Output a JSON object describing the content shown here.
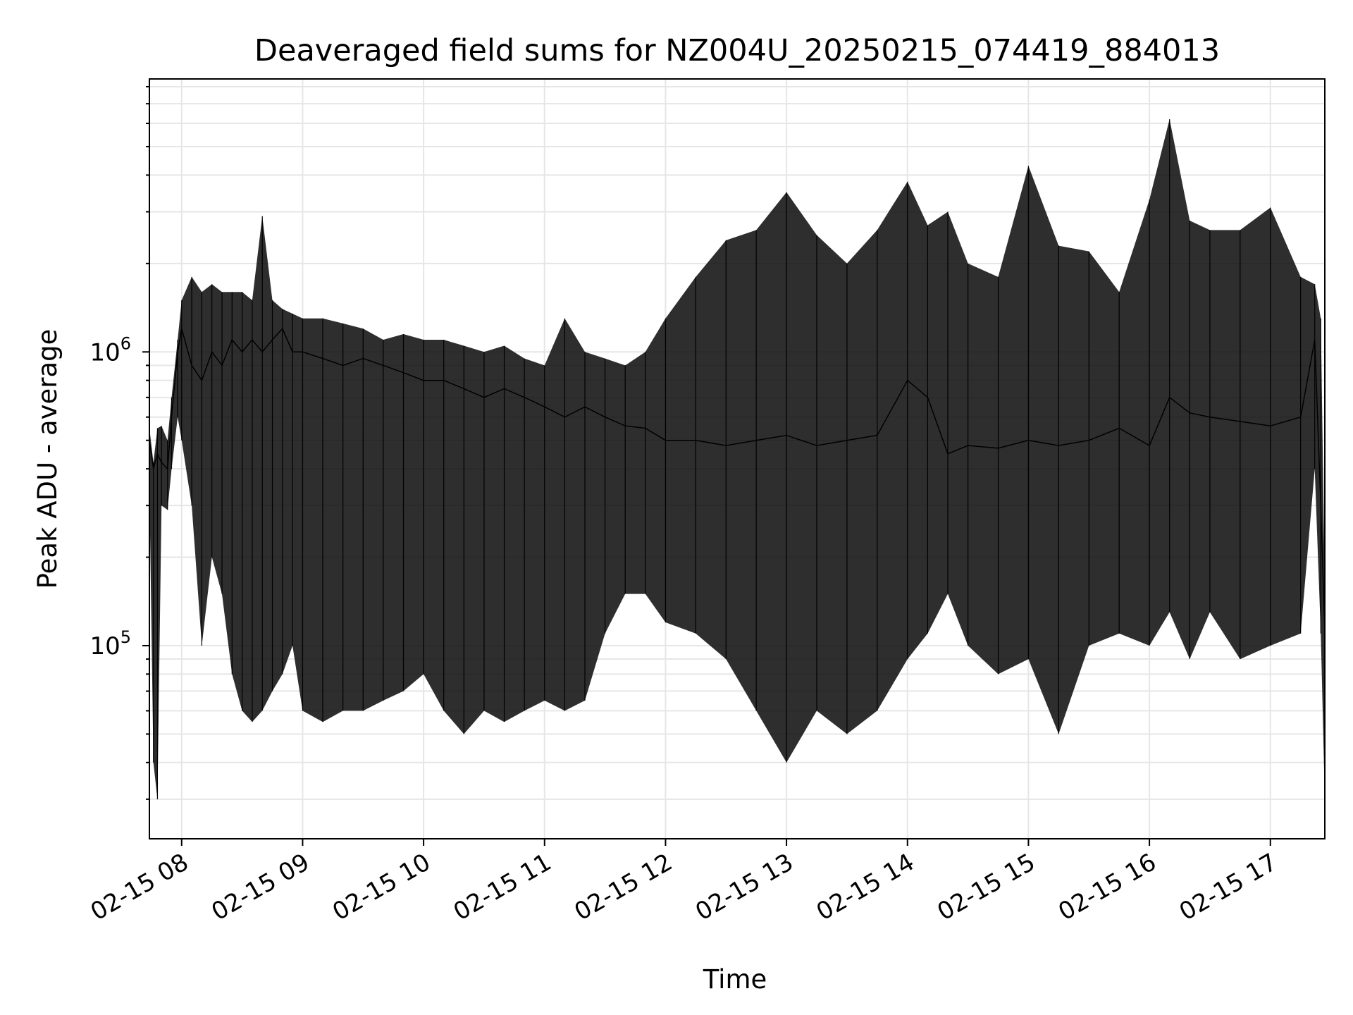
{
  "chart_data": {
    "type": "line",
    "title": "Deaveraged field sums for NZ004U_20250215_074419_884013",
    "xlabel": "Time",
    "ylabel": "Peak ADU - average",
    "yscale": "log",
    "ylim": [
      22000,
      8500000
    ],
    "xlim": [
      "2025-02-15 07:44",
      "2025-02-15 17:27"
    ],
    "grid": true,
    "line_color": "#000000",
    "x_ticks": [
      {
        "label": "02-15 08",
        "value": "2025-02-15 08:00"
      },
      {
        "label": "02-15 09",
        "value": "2025-02-15 09:00"
      },
      {
        "label": "02-15 10",
        "value": "2025-02-15 10:00"
      },
      {
        "label": "02-15 11",
        "value": "2025-02-15 11:00"
      },
      {
        "label": "02-15 12",
        "value": "2025-02-15 12:00"
      },
      {
        "label": "02-15 13",
        "value": "2025-02-15 13:00"
      },
      {
        "label": "02-15 14",
        "value": "2025-02-15 14:00"
      },
      {
        "label": "02-15 15",
        "value": "2025-02-15 15:00"
      },
      {
        "label": "02-15 16",
        "value": "2025-02-15 16:00"
      },
      {
        "label": "02-15 17",
        "value": "2025-02-15 17:00"
      }
    ],
    "y_ticks": [
      {
        "base": "10",
        "exp": "5",
        "value": 100000
      },
      {
        "base": "10",
        "exp": "6",
        "value": 1000000
      }
    ],
    "series": [
      {
        "x": [
          "2025-02-15 07:44",
          "2025-02-15 07:46",
          "2025-02-15 07:48",
          "2025-02-15 07:50",
          "2025-02-15 07:53",
          "2025-02-15 07:55",
          "2025-02-15 07:58",
          "2025-02-15 08:00",
          "2025-02-15 08:05",
          "2025-02-15 08:10",
          "2025-02-15 08:15",
          "2025-02-15 08:20",
          "2025-02-15 08:25",
          "2025-02-15 08:30",
          "2025-02-15 08:35",
          "2025-02-15 08:40",
          "2025-02-15 08:45",
          "2025-02-15 08:50",
          "2025-02-15 08:55",
          "2025-02-15 09:00",
          "2025-02-15 09:10",
          "2025-02-15 09:20",
          "2025-02-15 09:30",
          "2025-02-15 09:40",
          "2025-02-15 09:50",
          "2025-02-15 10:00",
          "2025-02-15 10:10",
          "2025-02-15 10:20",
          "2025-02-15 10:30",
          "2025-02-15 10:40",
          "2025-02-15 10:50",
          "2025-02-15 11:00",
          "2025-02-15 11:10",
          "2025-02-15 11:20",
          "2025-02-15 11:30",
          "2025-02-15 11:40",
          "2025-02-15 11:50",
          "2025-02-15 12:00",
          "2025-02-15 12:15",
          "2025-02-15 12:30",
          "2025-02-15 12:45",
          "2025-02-15 13:00",
          "2025-02-15 13:15",
          "2025-02-15 13:30",
          "2025-02-15 13:45",
          "2025-02-15 14:00",
          "2025-02-15 14:10",
          "2025-02-15 14:20",
          "2025-02-15 14:30",
          "2025-02-15 14:45",
          "2025-02-15 15:00",
          "2025-02-15 15:15",
          "2025-02-15 15:30",
          "2025-02-15 15:45",
          "2025-02-15 16:00",
          "2025-02-15 16:10",
          "2025-02-15 16:20",
          "2025-02-15 16:30",
          "2025-02-15 16:45",
          "2025-02-15 17:00",
          "2025-02-15 17:15",
          "2025-02-15 17:22",
          "2025-02-15 17:25",
          "2025-02-15 17:27"
        ],
        "y": [
          500000,
          400000,
          450000,
          420000,
          400000,
          600000,
          1000000,
          1200000,
          900000,
          800000,
          1000000,
          900000,
          1100000,
          1000000,
          1100000,
          1000000,
          1100000,
          1200000,
          1000000,
          1000000,
          950000,
          900000,
          950000,
          900000,
          850000,
          800000,
          800000,
          750000,
          700000,
          750000,
          700000,
          650000,
          600000,
          650000,
          600000,
          560000,
          550000,
          500000,
          500000,
          480000,
          500000,
          520000,
          480000,
          500000,
          520000,
          800000,
          700000,
          450000,
          480000,
          470000,
          500000,
          480000,
          500000,
          550000,
          480000,
          700000,
          620000,
          600000,
          580000,
          560000,
          600000,
          1100000,
          300000,
          110000
        ],
        "y_min": [
          350000,
          40000,
          30000,
          300000,
          290000,
          400000,
          600000,
          500000,
          300000,
          100000,
          200000,
          150000,
          80000,
          60000,
          55000,
          60000,
          70000,
          80000,
          100000,
          60000,
          55000,
          60000,
          60000,
          65000,
          70000,
          80000,
          60000,
          50000,
          60000,
          55000,
          60000,
          65000,
          60000,
          65000,
          110000,
          150000,
          150000,
          120000,
          110000,
          90000,
          60000,
          40000,
          60000,
          50000,
          60000,
          90000,
          110000,
          150000,
          100000,
          80000,
          90000,
          50000,
          100000,
          110000,
          100000,
          130000,
          90000,
          130000,
          90000,
          100000,
          110000,
          400000,
          110000,
          30000
        ],
        "y_max": [
          550000,
          420000,
          550000,
          560000,
          500000,
          700000,
          1100000,
          1500000,
          1800000,
          1600000,
          1700000,
          1600000,
          1600000,
          1600000,
          1500000,
          2900000,
          1500000,
          1400000,
          1350000,
          1300000,
          1300000,
          1250000,
          1200000,
          1100000,
          1150000,
          1100000,
          1100000,
          1050000,
          1000000,
          1050000,
          950000,
          900000,
          1300000,
          1000000,
          950000,
          900000,
          1000000,
          1300000,
          1800000,
          2400000,
          2600000,
          3500000,
          2500000,
          2000000,
          2600000,
          3800000,
          2700000,
          3000000,
          2000000,
          1800000,
          4300000,
          2300000,
          2200000,
          1600000,
          3300000,
          6200000,
          2800000,
          2600000,
          2600000,
          3100000,
          1800000,
          1700000,
          1300000,
          150000
        ]
      }
    ]
  }
}
